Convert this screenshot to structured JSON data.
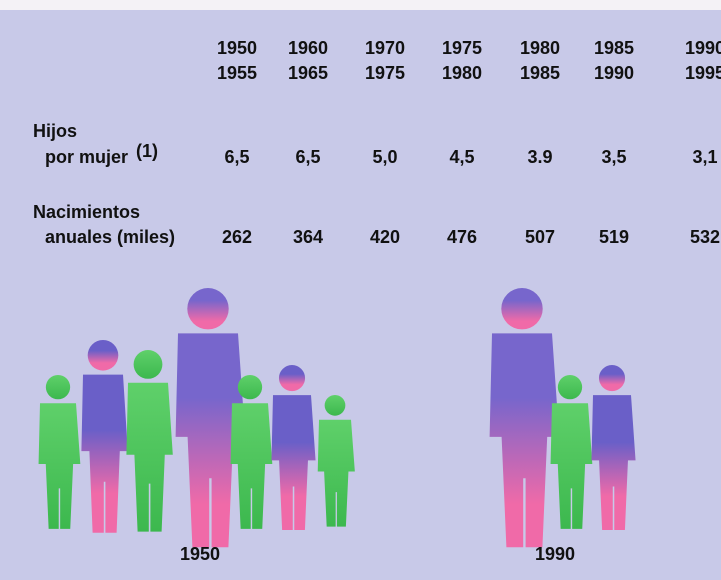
{
  "table": {
    "periods": [
      [
        "1950",
        "1955"
      ],
      [
        "1960",
        "1965"
      ],
      [
        "1970",
        "1975"
      ],
      [
        "1975",
        "1980"
      ],
      [
        "1980",
        "1985"
      ],
      [
        "1985",
        "1990"
      ],
      [
        "1990",
        "1995"
      ]
    ],
    "rows": [
      {
        "label": [
          "Hijos",
          "por mujer"
        ],
        "note": "(1)",
        "values": [
          "6,5",
          "6,5",
          "5,0",
          "4,5",
          "3.9",
          "3,5",
          "3,1"
        ]
      },
      {
        "label": [
          "Nacimientos",
          "anuales (miles)"
        ],
        "values": [
          262,
          364,
          420,
          476,
          507,
          519,
          532
        ]
      }
    ]
  },
  "figures": [
    {
      "label": "1950"
    },
    {
      "label": "1990"
    }
  ]
}
